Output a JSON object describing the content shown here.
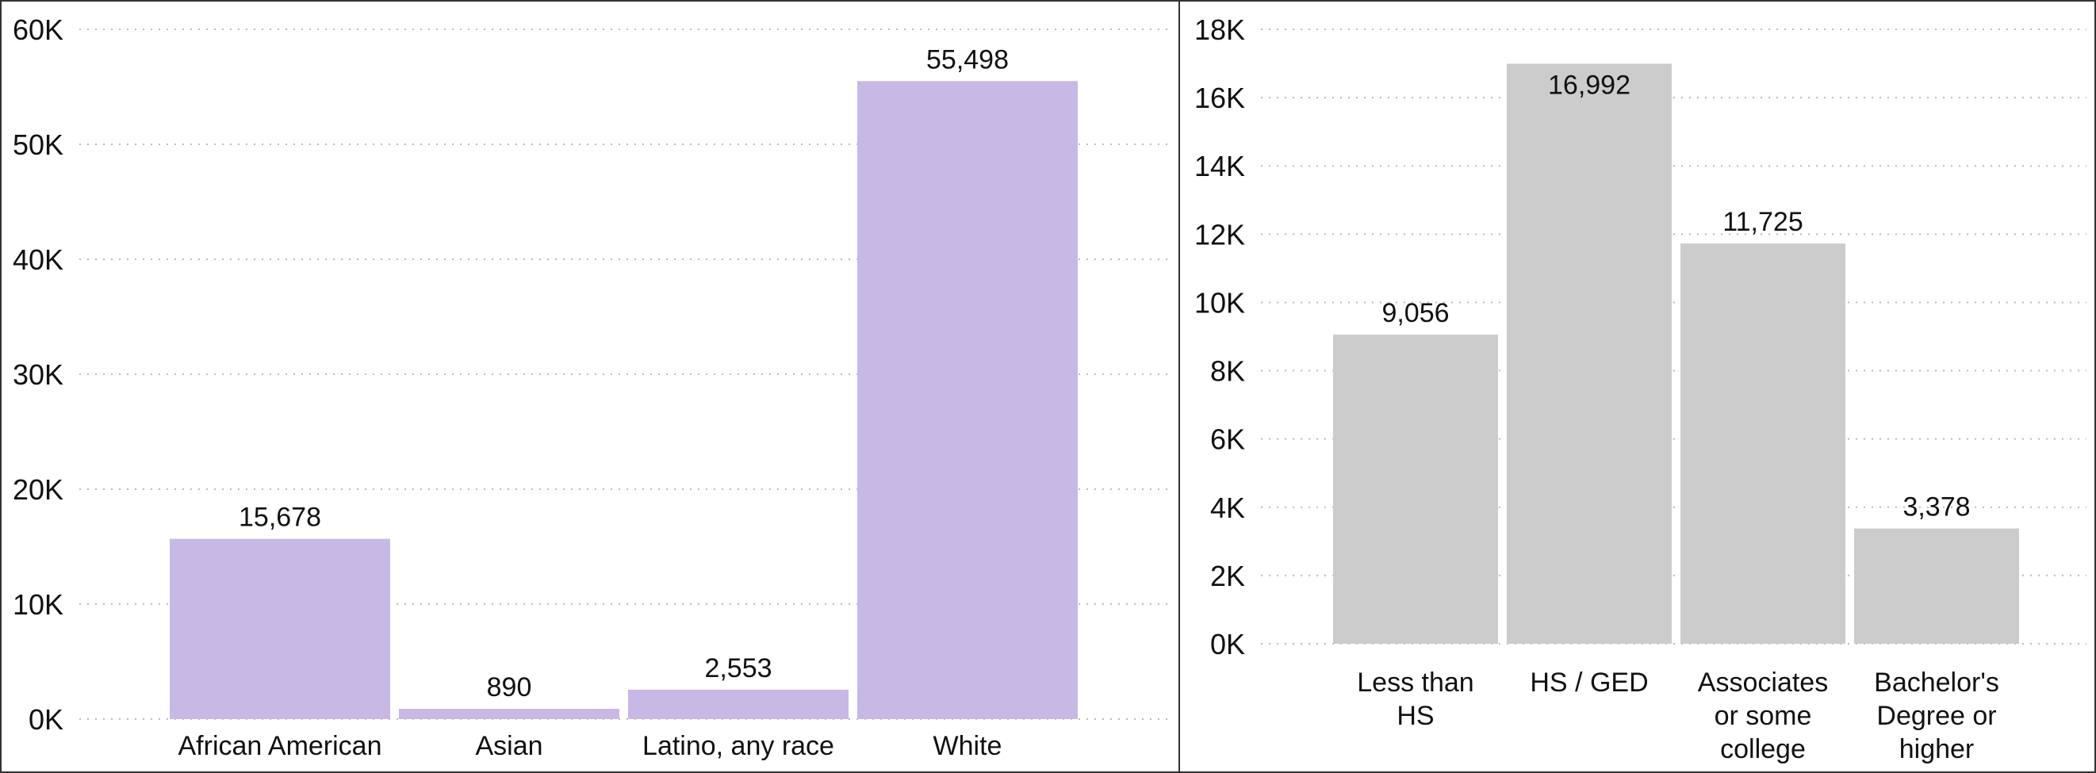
{
  "chart_data": [
    {
      "type": "bar",
      "categories": [
        [
          "African American"
        ],
        [
          "Asian"
        ],
        [
          "Latino, any race"
        ],
        [
          "White"
        ]
      ],
      "values": [
        15678,
        890,
        2553,
        55498
      ],
      "value_labels": [
        "15,678",
        "890",
        "2,553",
        "55,498"
      ],
      "ylim": [
        0,
        60000
      ],
      "yticks": [
        0,
        10000,
        20000,
        30000,
        40000,
        50000,
        60000
      ],
      "ytick_labels": [
        "0K",
        "10K",
        "20K",
        "30K",
        "40K",
        "50K",
        "60K"
      ],
      "value_label_position": "above",
      "grid": true,
      "color": "#c8b8e5",
      "title": "",
      "xlabel": "",
      "ylabel": ""
    },
    {
      "type": "bar",
      "categories": [
        [
          "Less than",
          "HS"
        ],
        [
          "HS / GED"
        ],
        [
          "Associates",
          "or some",
          "college"
        ],
        [
          "Bachelor's",
          "Degree or",
          "higher"
        ]
      ],
      "values": [
        9056,
        16992,
        11725,
        3378
      ],
      "value_labels": [
        "9,056",
        "16,992",
        "11,725",
        "3,378"
      ],
      "ylim": [
        0,
        18000
      ],
      "yticks": [
        0,
        2000,
        4000,
        6000,
        8000,
        10000,
        12000,
        14000,
        16000,
        18000
      ],
      "ytick_labels": [
        "0K",
        "2K",
        "4K",
        "6K",
        "8K",
        "10K",
        "12K",
        "14K",
        "16K",
        "18K"
      ],
      "value_label_position": "mixed",
      "grid": true,
      "color": "#cccccc",
      "title": "",
      "xlabel": "",
      "ylabel": ""
    }
  ]
}
